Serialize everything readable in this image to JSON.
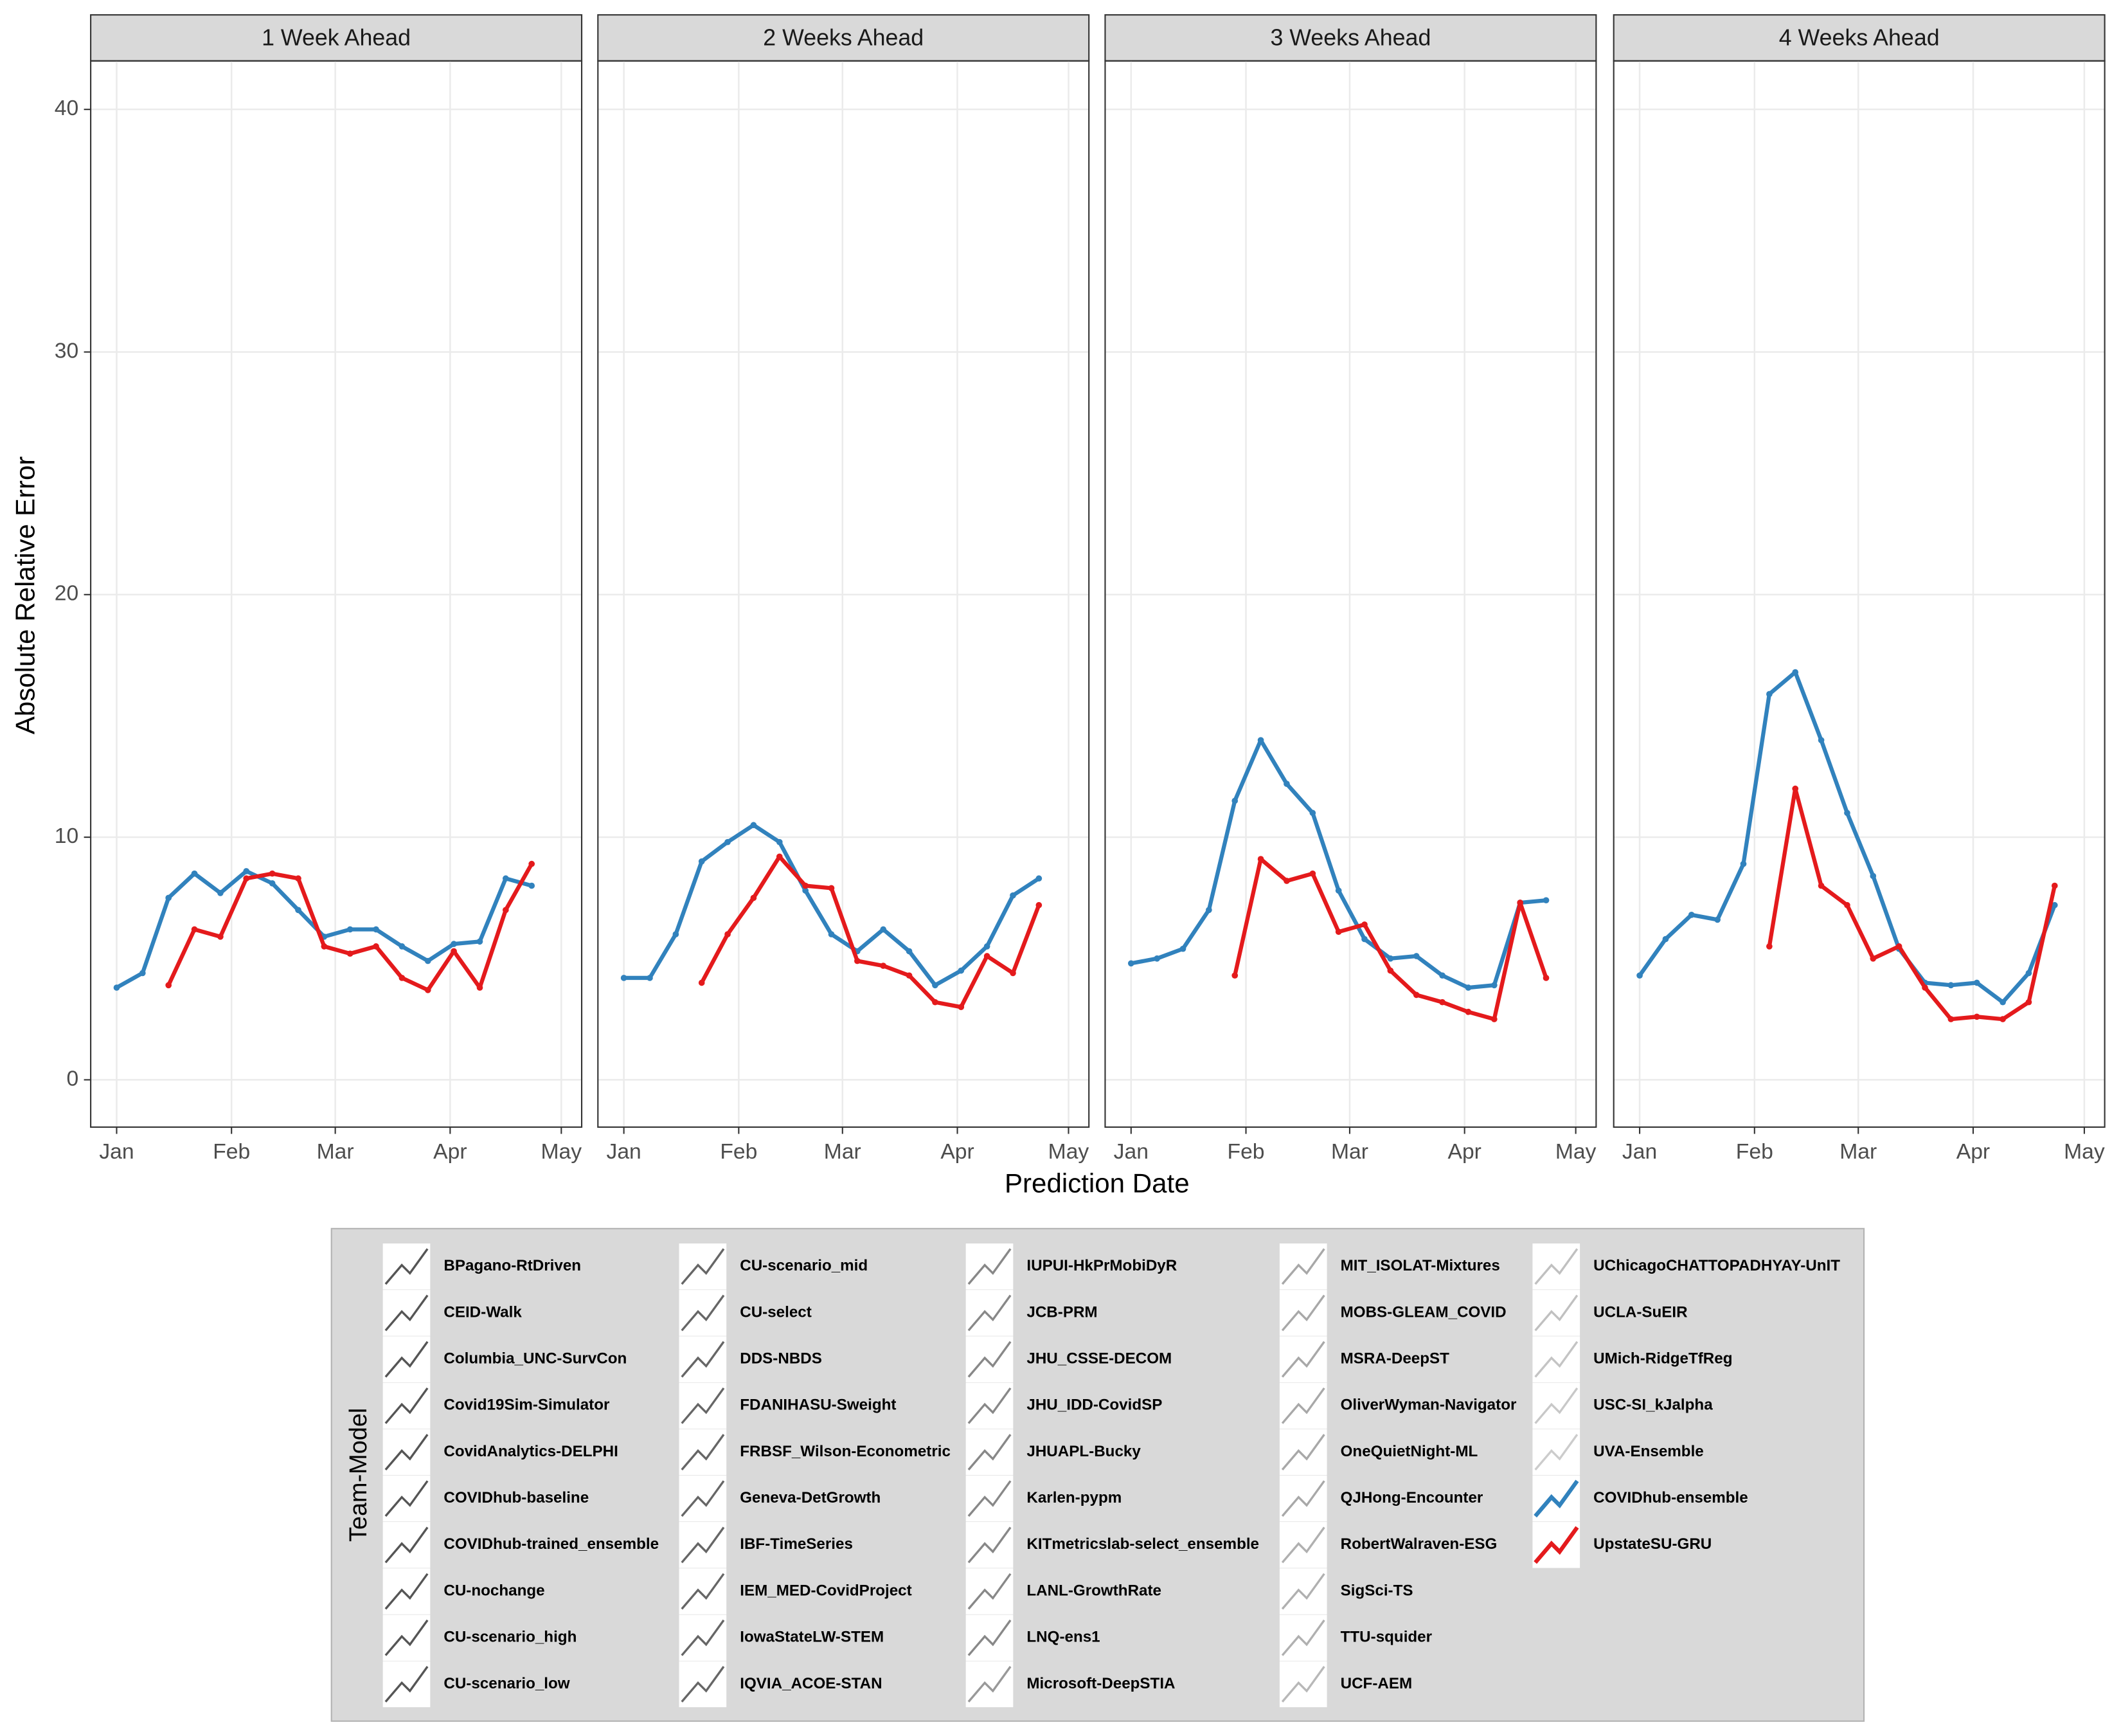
{
  "chart_data": {
    "type": "line",
    "panels": [
      "1 Week Ahead",
      "2 Weeks Ahead",
      "3 Weeks Ahead",
      "4 Weeks Ahead"
    ],
    "xlabel": "Prediction Date",
    "ylabel": "Absolute Relative Error",
    "legend_title": "Team-Model",
    "x": [
      0,
      7,
      14,
      21,
      28,
      35,
      42,
      49,
      56,
      63,
      70,
      77,
      84,
      91,
      98,
      105,
      112
    ],
    "xlim": [
      -7,
      125.5
    ],
    "xticks": [
      {
        "value": 0,
        "label": "Jan"
      },
      {
        "value": 31,
        "label": "Feb"
      },
      {
        "value": 59,
        "label": "Mar"
      },
      {
        "value": 90,
        "label": "Apr"
      },
      {
        "value": 120,
        "label": "May"
      }
    ],
    "ylim": [
      -1.95,
      42
    ],
    "yticks": [
      0,
      10,
      20,
      30,
      40
    ],
    "grid": true,
    "series": [
      {
        "name": "BPagano-RtDriven",
        "color": "#555555"
      },
      {
        "name": "CEID-Walk",
        "color": "#555555"
      },
      {
        "name": "Columbia_UNC-SurvCon",
        "color": "#555555"
      },
      {
        "name": "Covid19Sim-Simulator",
        "color": "#555555"
      },
      {
        "name": "CovidAnalytics-DELPHI",
        "color": "#555555"
      },
      {
        "name": "COVIDhub-baseline",
        "color": "#555555"
      },
      {
        "name": "COVIDhub-trained_ensemble",
        "color": "#555555"
      },
      {
        "name": "CU-nochange",
        "color": "#555555"
      },
      {
        "name": "CU-scenario_high",
        "color": "#555555"
      },
      {
        "name": "CU-scenario_low",
        "color": "#555555"
      },
      {
        "name": "CU-scenario_mid",
        "color": "#666666"
      },
      {
        "name": "CU-select",
        "color": "#666666"
      },
      {
        "name": "DDS-NBDS",
        "color": "#666666"
      },
      {
        "name": "FDANIHASU-Sweight",
        "color": "#666666"
      },
      {
        "name": "FRBSF_Wilson-Econometric",
        "color": "#666666"
      },
      {
        "name": "Geneva-DetGrowth",
        "color": "#666666"
      },
      {
        "name": "IBF-TimeSeries",
        "color": "#666666"
      },
      {
        "name": "IEM_MED-CovidProject",
        "color": "#666666"
      },
      {
        "name": "IowaStateLW-STEM",
        "color": "#666666"
      },
      {
        "name": "IQVIA_ACOE-STAN",
        "color": "#666666"
      },
      {
        "name": "IUPUI-HkPrMobiDyR",
        "color": "#888888"
      },
      {
        "name": "JCB-PRM",
        "color": "#888888"
      },
      {
        "name": "JHU_CSSE-DECOM",
        "color": "#888888"
      },
      {
        "name": "JHU_IDD-CovidSP",
        "color": "#888888"
      },
      {
        "name": "JHUAPL-Bucky",
        "color": "#888888"
      },
      {
        "name": "Karlen-pypm",
        "color": "#888888"
      },
      {
        "name": "KITmetricslab-select_ensemble",
        "color": "#888888"
      },
      {
        "name": "LANL-GrowthRate",
        "color": "#888888"
      },
      {
        "name": "LNQ-ens1",
        "color": "#888888"
      },
      {
        "name": "Microsoft-DeepSTIA",
        "color": "#999999"
      },
      {
        "name": "MIT_ISOLAT-Mixtures",
        "color": "#a8a8a8"
      },
      {
        "name": "MOBS-GLEAM_COVID",
        "color": "#a8a8a8"
      },
      {
        "name": "MSRA-DeepST",
        "color": "#a8a8a8"
      },
      {
        "name": "OliverWyman-Navigator",
        "color": "#a8a8a8"
      },
      {
        "name": "OneQuietNight-ML",
        "color": "#a8a8a8"
      },
      {
        "name": "QJHong-Encounter",
        "color": "#a8a8a8"
      },
      {
        "name": "RobertWalraven-ESG",
        "color": "#b0b0b0"
      },
      {
        "name": "SigSci-TS",
        "color": "#b0b0b0"
      },
      {
        "name": "TTU-squider",
        "color": "#b0b0b0"
      },
      {
        "name": "UCF-AEM",
        "color": "#b8b8b8"
      },
      {
        "name": "UChicagoCHATTOPADHYAY-UnIT",
        "color": "#c0c0c0"
      },
      {
        "name": "UCLA-SuEIR",
        "color": "#c0c0c0"
      },
      {
        "name": "UMich-RidgeTfReg",
        "color": "#c4c4c4"
      },
      {
        "name": "USC-SI_kJalpha",
        "color": "#c8c8c8"
      },
      {
        "name": "UVA-Ensemble",
        "color": "#cccccc"
      },
      {
        "name": "COVIDhub-ensemble",
        "color": "#3182bd",
        "values": [
          [
            3.8,
            4.4,
            7.5,
            8.5,
            7.7,
            8.6,
            8.1,
            7.0,
            5.9,
            6.2,
            6.2,
            5.5,
            4.9,
            5.6,
            5.7,
            8.3,
            8.0
          ],
          [
            4.2,
            4.2,
            6.0,
            9.0,
            9.8,
            10.5,
            9.8,
            7.8,
            6.0,
            5.3,
            6.2,
            5.3,
            3.9,
            4.5,
            5.5,
            7.6,
            8.3
          ],
          [
            4.8,
            5.0,
            5.4,
            7.0,
            11.5,
            14.0,
            12.2,
            11.0,
            7.8,
            5.8,
            5.0,
            5.1,
            4.3,
            3.8,
            3.9,
            7.3,
            7.4
          ],
          [
            4.3,
            5.8,
            6.8,
            6.6,
            8.9,
            15.9,
            16.8,
            14.0,
            11.0,
            8.4,
            5.4,
            4.0,
            3.9,
            4.0,
            3.2,
            4.4,
            7.2
          ]
        ]
      },
      {
        "name": "UpstateSU-GRU",
        "color": "#e41a1c",
        "values": [
          [
            null,
            null,
            3.9,
            6.2,
            5.9,
            8.3,
            8.5,
            8.3,
            5.5,
            5.2,
            5.5,
            4.2,
            3.7,
            5.3,
            3.8,
            7.0,
            8.9
          ],
          [
            null,
            null,
            null,
            4.0,
            6.0,
            7.5,
            9.2,
            8.0,
            7.9,
            4.9,
            4.7,
            4.3,
            3.2,
            3.0,
            5.1,
            4.4,
            7.2
          ],
          [
            null,
            null,
            null,
            null,
            4.3,
            9.1,
            8.2,
            8.5,
            6.1,
            6.4,
            4.5,
            3.5,
            3.2,
            2.8,
            2.5,
            7.3,
            4.2
          ],
          [
            null,
            null,
            null,
            null,
            null,
            5.5,
            12.0,
            8.0,
            7.2,
            5.0,
            5.5,
            3.8,
            2.5,
            2.6,
            2.5,
            3.2,
            8.0
          ]
        ]
      }
    ]
  }
}
